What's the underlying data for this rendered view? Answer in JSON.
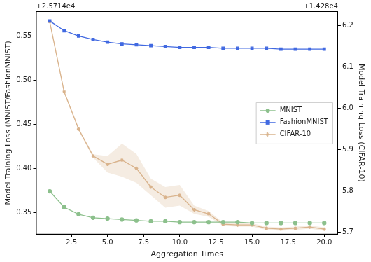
{
  "chart_data": {
    "type": "line",
    "x_label": "Aggregation Times",
    "y_label": "Model Training Loss (MNIST/FashionMNIST)",
    "y2_label": "Model Training Loss (CIFAR-10)",
    "y_offset_text": "+2.5714e4",
    "y2_offset_text": "+1.428e4",
    "x": [
      1,
      2,
      3,
      4,
      5,
      6,
      7,
      8,
      9,
      10,
      11,
      12,
      13,
      14,
      15,
      16,
      17,
      18,
      19,
      20
    ],
    "xlim": [
      0.05,
      20.95
    ],
    "xticks": [
      2.5,
      {
        "value": 5,
        "label": "5.0"
      },
      7.5,
      {
        "value": 10,
        "label": "10.0"
      },
      12.5,
      {
        "value": 15,
        "label": "15.0"
      },
      17.5,
      {
        "value": 20,
        "label": "20.0"
      }
    ],
    "ylim": [
      0.325,
      0.578
    ],
    "yticks": [
      0.35,
      {
        "value": 0.4,
        "label": "0.40"
      },
      0.45,
      {
        "value": 0.5,
        "label": "0.50"
      },
      0.55
    ],
    "y2lim": [
      5.695,
      6.235
    ],
    "y2ticks": [
      5.7,
      5.8,
      5.9,
      {
        "value": 6,
        "label": "6.0"
      },
      6.1,
      6.2
    ],
    "grid": false,
    "legend": "center right",
    "series": [
      {
        "name": "MNIST",
        "color": "#8cc08c",
        "marker": "circle",
        "axis": "y",
        "values": [
          0.374,
          0.356,
          0.348,
          0.344,
          0.343,
          0.342,
          0.341,
          0.34,
          0.34,
          0.339,
          0.339,
          0.339,
          0.339,
          0.339,
          0.338,
          0.338,
          0.338,
          0.338,
          0.338,
          0.338
        ]
      },
      {
        "name": "FashionMNIST",
        "color": "#4169e1",
        "marker": "square",
        "axis": "y",
        "values": [
          0.567,
          0.556,
          0.55,
          0.546,
          0.543,
          0.541,
          0.54,
          0.539,
          0.538,
          0.537,
          0.537,
          0.537,
          0.536,
          0.536,
          0.536,
          0.536,
          0.535,
          0.535,
          0.535,
          0.535
        ]
      },
      {
        "name": "CIFAR-10",
        "color": "#d9b38c",
        "marker": "star",
        "axis": "y2",
        "values": [
          6.21,
          6.04,
          5.95,
          5.885,
          5.865,
          5.875,
          5.855,
          5.81,
          5.785,
          5.79,
          5.755,
          5.745,
          5.72,
          5.718,
          5.718,
          5.71,
          5.708,
          5.71,
          5.713,
          5.708
        ],
        "band_lower": [
          6.207,
          6.036,
          5.946,
          5.881,
          5.845,
          5.835,
          5.82,
          5.79,
          5.76,
          5.765,
          5.745,
          5.738,
          5.716,
          5.714,
          5.714,
          5.706,
          5.704,
          5.706,
          5.709,
          5.704
        ],
        "band_upper": [
          6.213,
          6.044,
          5.954,
          5.889,
          5.885,
          5.915,
          5.89,
          5.83,
          5.81,
          5.815,
          5.765,
          5.752,
          5.724,
          5.722,
          5.722,
          5.714,
          5.712,
          5.714,
          5.717,
          5.712
        ]
      }
    ]
  }
}
